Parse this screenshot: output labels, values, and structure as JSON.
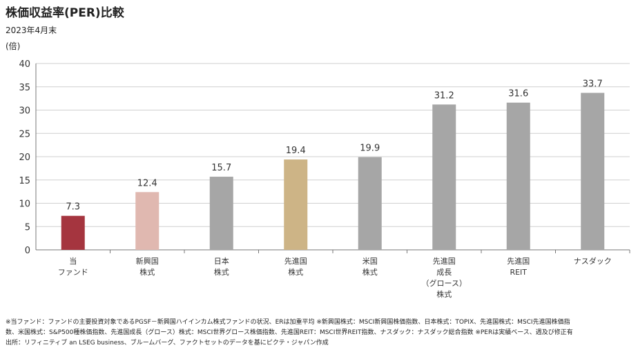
{
  "title": "株価収益率(PER)比較",
  "subtitle": "2023年4月末",
  "unit_label": "(倍)",
  "chart_data": {
    "type": "bar",
    "title": "株価収益率(PER)比較",
    "subtitle": "2023年4月末",
    "ylabel": "(倍)",
    "ylim": [
      0,
      40
    ],
    "yticks": [
      0,
      5,
      10,
      15,
      20,
      25,
      30,
      35,
      40
    ],
    "grid": true,
    "categories": [
      [
        "当",
        "ファンド"
      ],
      [
        "新興国",
        "株式"
      ],
      [
        "日本",
        "株式"
      ],
      [
        "先進国",
        "株式"
      ],
      [
        "米国",
        "株式"
      ],
      [
        "先進国",
        "成長",
        "（グロース）",
        "株式"
      ],
      [
        "先進国",
        "REIT"
      ],
      [
        "ナスダック"
      ]
    ],
    "values": [
      7.3,
      12.4,
      15.7,
      19.4,
      19.9,
      31.2,
      31.6,
      33.7
    ],
    "value_labels": [
      "7.3",
      "12.4",
      "15.7",
      "19.4",
      "19.9",
      "31.2",
      "31.6",
      "33.7"
    ],
    "colors": [
      "#a5353f",
      "#e0b8b0",
      "#a6a6a6",
      "#cdb486",
      "#a6a6a6",
      "#a6a6a6",
      "#a6a6a6",
      "#a6a6a6"
    ]
  },
  "notes": [
    "※当ファンド：ファンドの主要投資対象であるPGSF－新興国ハイインカム株式ファンドの状況、ERは加重平均 ※新興国株式：MSCI新興国株価指数、日本株式：TOPIX、先進国株式：MSCI先進国株価指",
    "数、米国株式：S&P500種株価指数、先進国成長（グロース）株式：MSCI世界グロース株価指数、先進国REIT：MSCI世界REIT指数、ナスダック：ナスダック総合指数 ※PERは実績ベース、週及び修正有",
    "出所：リフィニティブ an LSEG business、ブルームバーグ、ファクトセットのデータを基にピクテ・ジャパン作成"
  ]
}
